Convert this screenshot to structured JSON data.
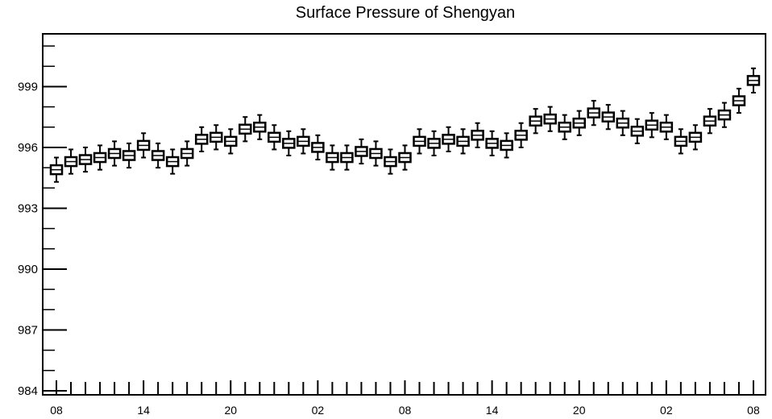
{
  "chart_data": {
    "type": "boxplot",
    "title": "Surface Pressure of Shengyan",
    "xlabel": "",
    "ylabel": "",
    "ylim": [
      983.8,
      1001.6
    ],
    "yticks": [
      984,
      987,
      990,
      993,
      996,
      999
    ],
    "xtick_labels": [
      "08",
      "14",
      "20",
      "02",
      "08",
      "14",
      "20",
      "02",
      "08"
    ],
    "x_label_every": 6,
    "grid": false,
    "medians": [
      994.9,
      995.3,
      995.4,
      995.5,
      995.7,
      995.6,
      996.1,
      995.6,
      995.3,
      995.7,
      996.4,
      996.5,
      996.3,
      996.9,
      997.0,
      996.5,
      996.2,
      996.3,
      996.0,
      995.5,
      995.5,
      995.8,
      995.7,
      995.3,
      995.5,
      996.3,
      996.2,
      996.4,
      996.3,
      996.6,
      996.2,
      996.1,
      996.6,
      997.3,
      997.4,
      997.0,
      997.2,
      997.7,
      997.5,
      997.2,
      996.8,
      997.1,
      997.0,
      996.3,
      996.5,
      997.3,
      997.6,
      998.3,
      999.3
    ]
  }
}
